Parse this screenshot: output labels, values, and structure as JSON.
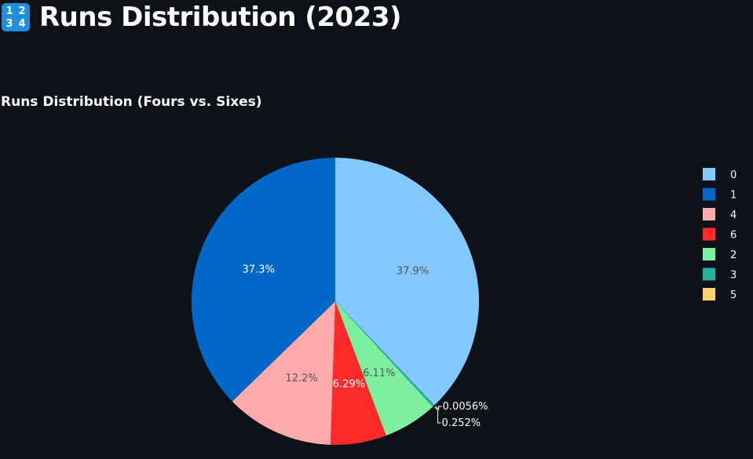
{
  "page": {
    "title": "Runs Distribution (2023)",
    "icon": "numbers-1234-icon",
    "icon_glyphs": [
      "1",
      "2",
      "3",
      "4"
    ]
  },
  "chart_data": {
    "type": "pie",
    "title": "Runs Distribution (Fours vs. Sixes)",
    "legend_position": "right",
    "slices": [
      {
        "label": "0",
        "value": 37.9,
        "display": "37.9%",
        "color": "#83c9ff",
        "text_color": "#555555"
      },
      {
        "label": "3",
        "value": 0.0056,
        "display": "0.0056%",
        "color": "#29b09d",
        "text_color": "#ffffff"
      },
      {
        "label": "3",
        "value": 0.252,
        "display": "0.252%",
        "color": "#29b09d",
        "text_color": "#ffffff"
      },
      {
        "label": "2",
        "value": 6.11,
        "display": "6.11%",
        "color": "#7defa1",
        "text_color": "#555555"
      },
      {
        "label": "6",
        "value": 6.29,
        "display": "6.29%",
        "color": "#ff2b2b",
        "text_color": "#ffffff"
      },
      {
        "label": "4",
        "value": 12.2,
        "display": "12.2%",
        "color": "#ffabab",
        "text_color": "#555555"
      },
      {
        "label": "1",
        "value": 37.3,
        "display": "37.3%",
        "color": "#0068c9",
        "text_color": "#ffffff"
      }
    ],
    "legend": [
      {
        "label": "0",
        "color": "#83c9ff"
      },
      {
        "label": "1",
        "color": "#0068c9"
      },
      {
        "label": "4",
        "color": "#ffabab"
      },
      {
        "label": "6",
        "color": "#ff2b2b"
      },
      {
        "label": "2",
        "color": "#7defa1"
      },
      {
        "label": "3",
        "color": "#29b09d"
      },
      {
        "label": "5",
        "color": "#ffd16a"
      }
    ]
  }
}
